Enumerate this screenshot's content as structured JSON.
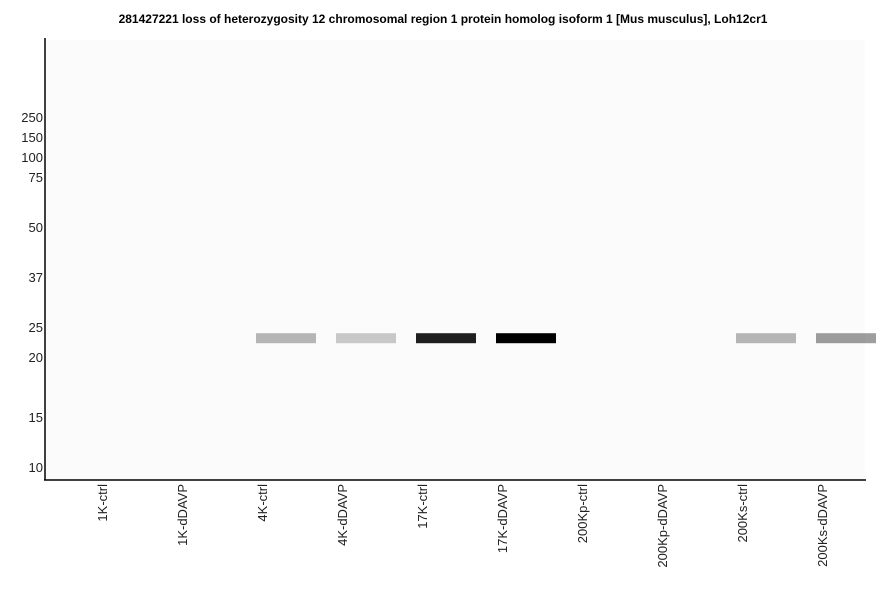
{
  "chart_data": {
    "type": "heatmap",
    "title": "281427221 loss of heterozygosity 12 chromosomal region 1 protein homolog isoform 1 [Mus musculus], Loh12cr1",
    "y_tick_labels": [
      "250",
      "150",
      "100",
      "75",
      "50",
      "37",
      "25",
      "20",
      "15",
      "10"
    ],
    "lanes": [
      "1K-ctrl",
      "1K-dDAVP",
      "4K-ctrl",
      "4K-dDAVP",
      "17K-ctrl",
      "17K-dDAVP",
      "200Kp-ctrl",
      "200Kp-dDAVP",
      "200Ks-ctrl",
      "200Ks-dDAVP"
    ],
    "band_marker_kda": 23,
    "band_intensity": [
      0,
      0,
      0.28,
      0.2,
      0.88,
      1.0,
      0,
      0,
      0.28,
      0.38
    ],
    "grid": false,
    "legend": "none"
  },
  "colors": {
    "background": "#fbfbfb",
    "axis": "#000000",
    "band": "#000000"
  }
}
